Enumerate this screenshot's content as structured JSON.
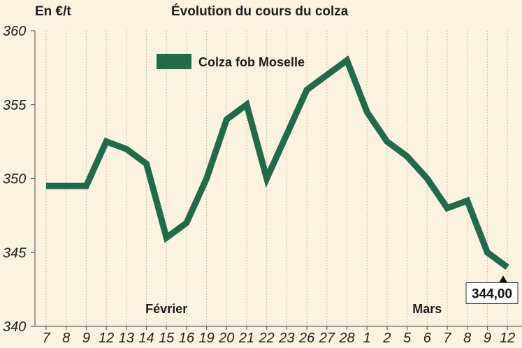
{
  "chart_data": {
    "type": "line",
    "title": "Évolution du cours du colza",
    "ylabel": "En €/t",
    "ylim": [
      340,
      360
    ],
    "yticks": [
      340,
      345,
      350,
      355,
      360
    ],
    "grid": "vertical dotted",
    "categories": [
      "7",
      "8",
      "9",
      "12",
      "13",
      "14",
      "15",
      "16",
      "19",
      "20",
      "21",
      "22",
      "23",
      "26",
      "27",
      "28",
      "1",
      "2",
      "5",
      "6",
      "7",
      "8",
      "9",
      "12"
    ],
    "month_labels": [
      {
        "label": "Février",
        "at_index": 6
      },
      {
        "label": "Mars",
        "at_index": 19
      }
    ],
    "series": [
      {
        "name": "Colza fob Moselle",
        "color": "#1f6b4a",
        "values": [
          349.5,
          349.5,
          349.5,
          352.5,
          352,
          351,
          346,
          347,
          350,
          354,
          355,
          350,
          353,
          356,
          357,
          358,
          354.5,
          352.5,
          351.5,
          350,
          348,
          348.5,
          345,
          344
        ]
      }
    ],
    "legend": "top-left",
    "callout": {
      "text": "344,00",
      "at_index": 23
    }
  }
}
